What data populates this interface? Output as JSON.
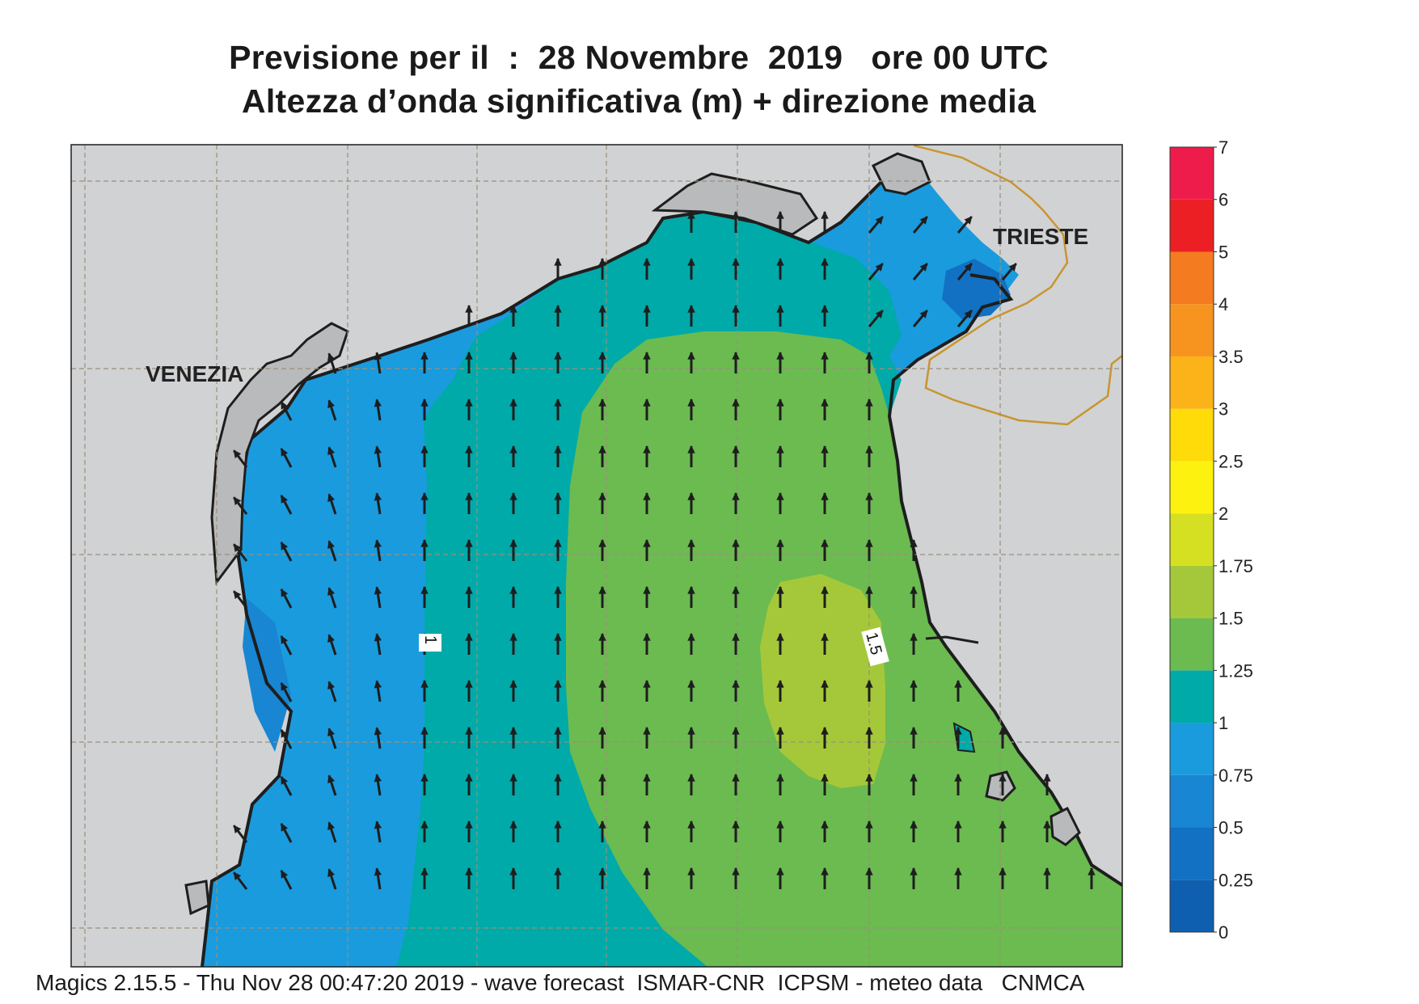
{
  "title_line1": "Previsione per il  :  28 Novembre  2019   ore 00 UTC",
  "title_line2": "Altezza d’onda significativa (m) + direzione media",
  "cities": [
    "VENEZIA",
    "TRIESTE"
  ],
  "contour_labels": [
    "1",
    "1.5"
  ],
  "legend": [
    {
      "label": "0",
      "color": "#0f5fb0"
    },
    {
      "label": "0.25",
      "color": "#1271c3"
    },
    {
      "label": "0.5",
      "color": "#1886d2"
    },
    {
      "label": "0.75",
      "color": "#1a9bde"
    },
    {
      "label": "1",
      "color": "#00aaa9"
    },
    {
      "label": "1.25",
      "color": "#6bbb50"
    },
    {
      "label": "1.5",
      "color": "#a5c83a"
    },
    {
      "label": "1.75",
      "color": "#d5e023"
    },
    {
      "label": "2",
      "color": "#fdf20f"
    },
    {
      "label": "2.5",
      "color": "#fedb09"
    },
    {
      "label": "3",
      "color": "#fcb319"
    },
    {
      "label": "3.5",
      "color": "#f7941f"
    },
    {
      "label": "4",
      "color": "#f47b20"
    },
    {
      "label": "5",
      "color": "#ec2024"
    },
    {
      "label": "6",
      "color": "#ee1c4b"
    },
    {
      "label": "7",
      "color": ""
    }
  ],
  "land_color": "#d1d2d4",
  "footer": "Magics 2.15.5 - Thu Nov 28 00:47:20 2019 - wave forecast  ISMAR-CNR  ICPSM - meteo data   CNMCA"
}
